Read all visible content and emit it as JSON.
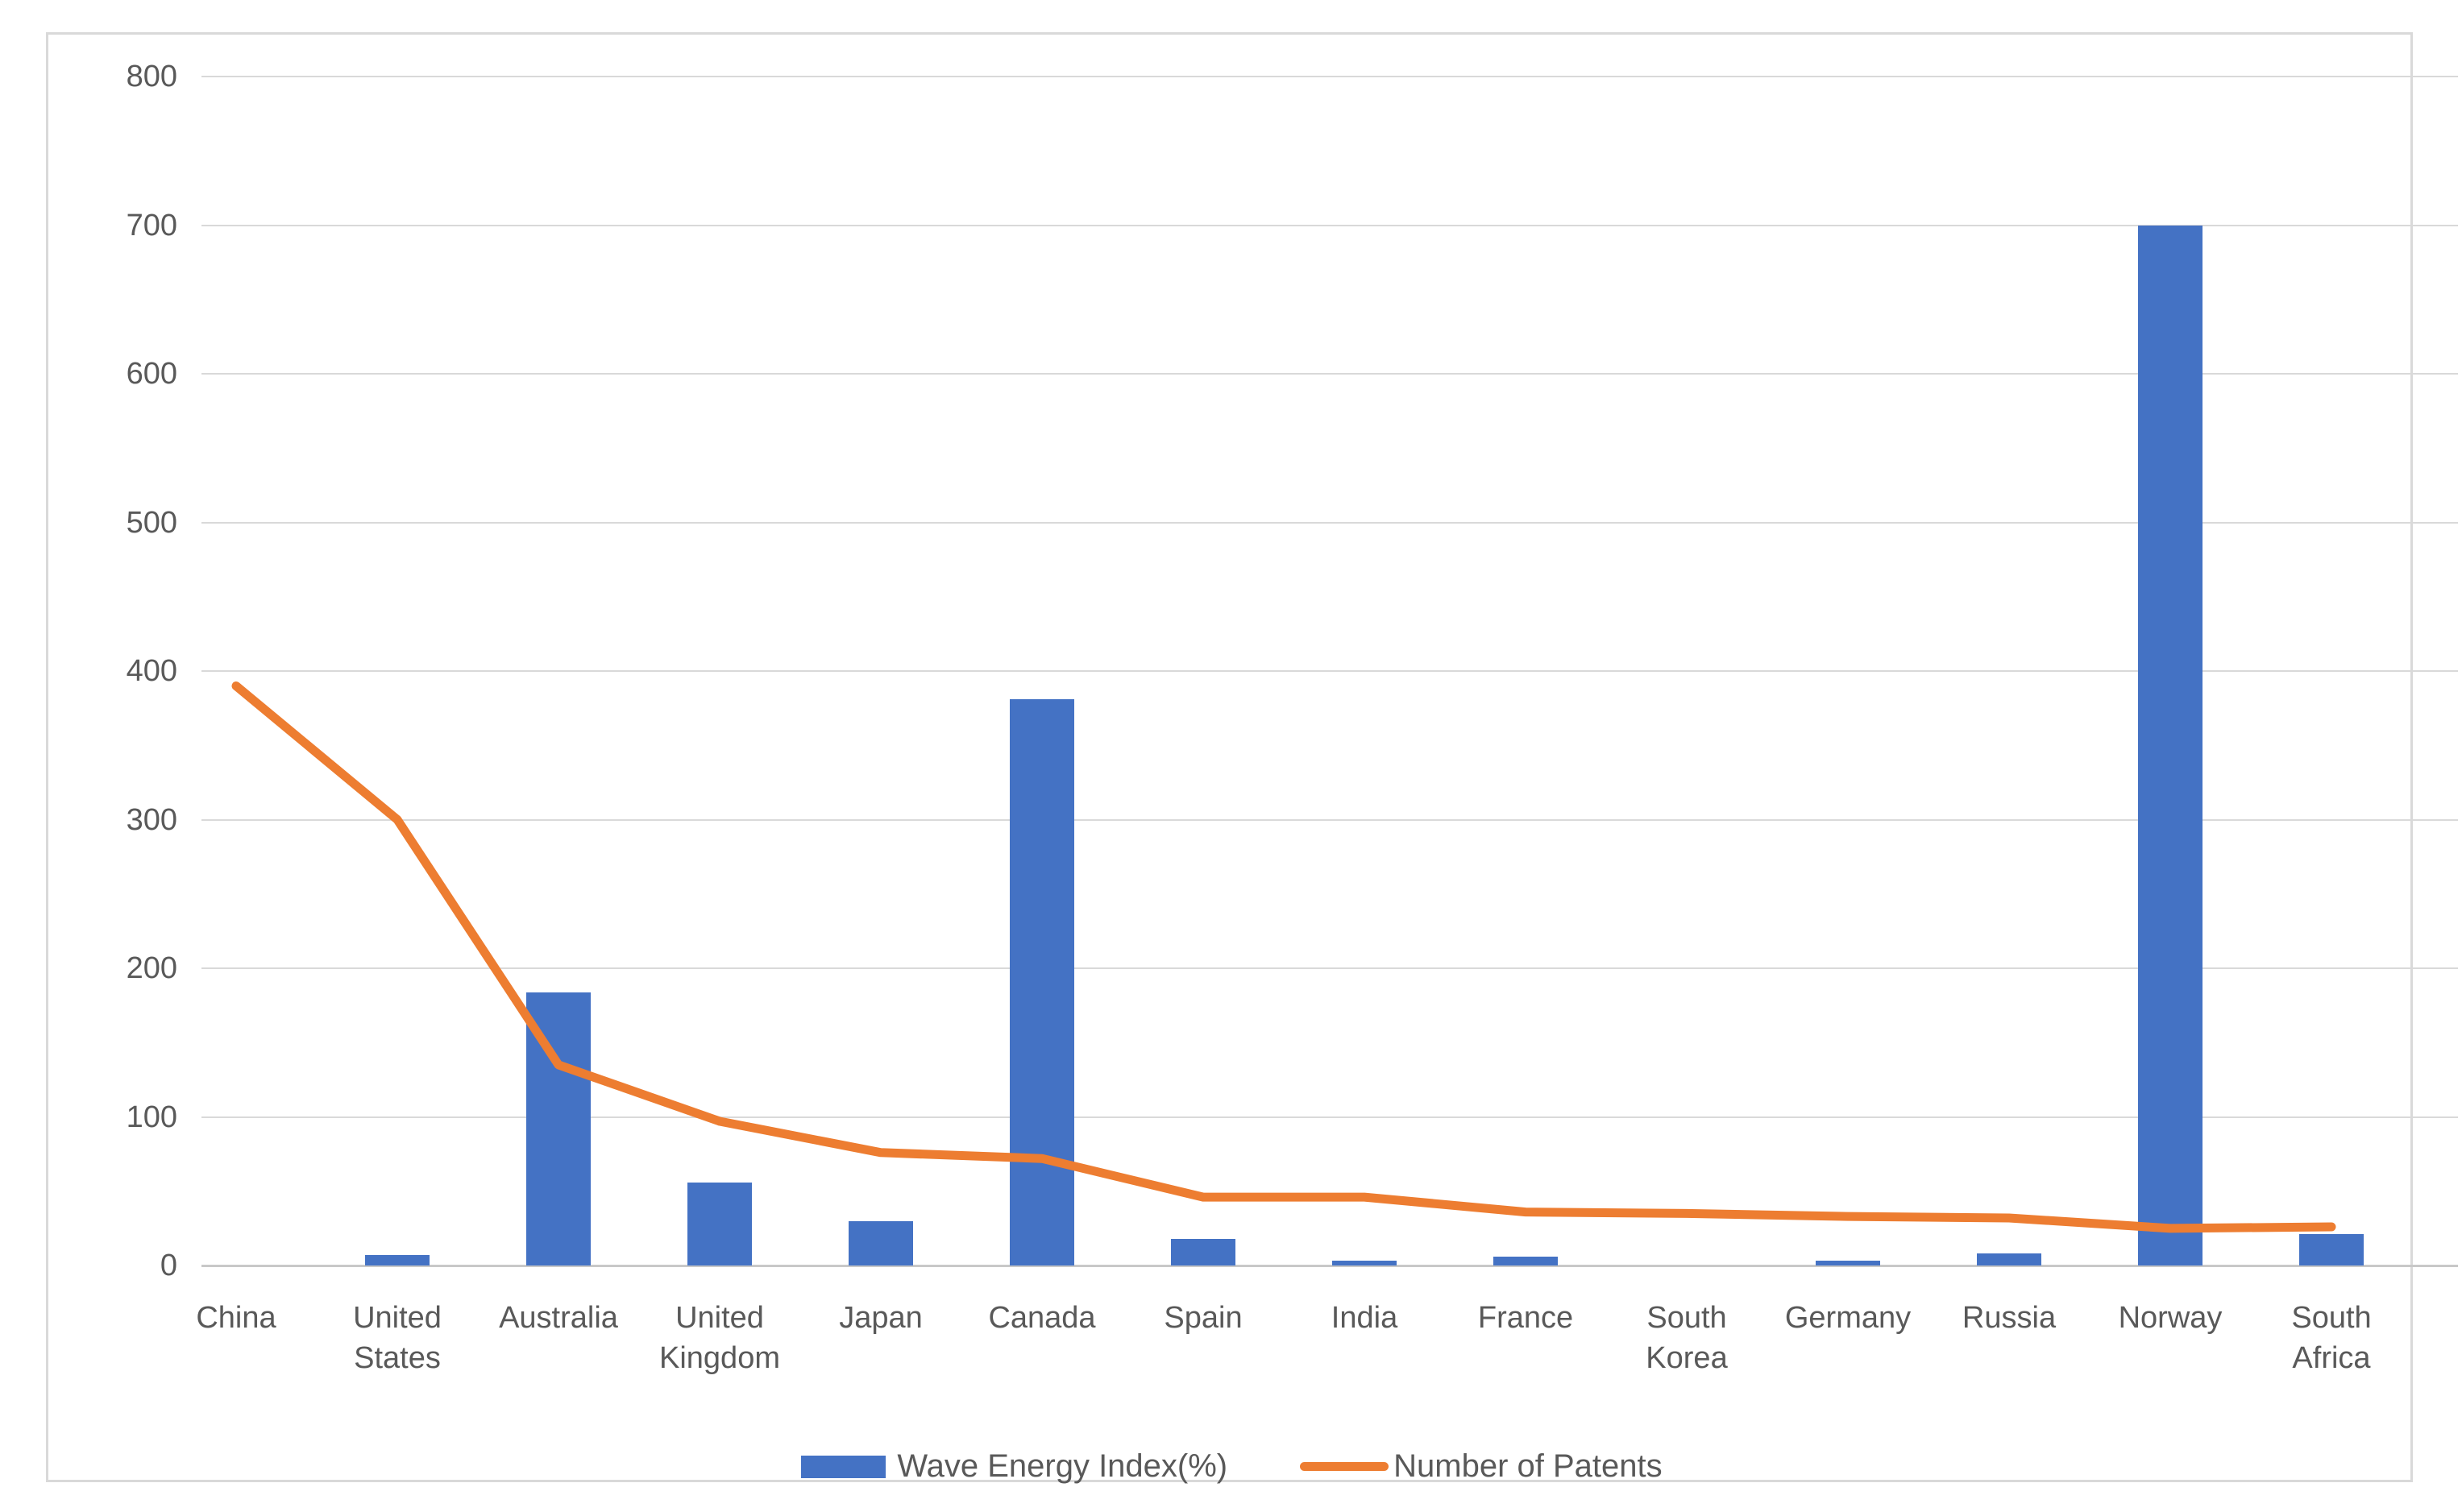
{
  "chart_data": {
    "type": "combo",
    "categories": [
      "China",
      "United States",
      "Australia",
      "United Kingdom",
      "Japan",
      "Canada",
      "Spain",
      "India",
      "France",
      "South Korea",
      "Germany",
      "Russia",
      "Norway",
      "South Africa"
    ],
    "series": [
      {
        "name": "Wave Energy Index(%)",
        "type": "bar",
        "color": "#4472C4",
        "values": [
          0,
          7,
          184,
          56,
          30,
          381,
          18,
          3,
          6,
          0,
          3,
          8,
          700,
          21
        ]
      },
      {
        "name": "Number of Patents",
        "type": "line",
        "color": "#ED7D31",
        "values": [
          390,
          300,
          135,
          97,
          76,
          72,
          46,
          46,
          36,
          35,
          33,
          32,
          25,
          26
        ]
      }
    ],
    "title": "",
    "xlabel": "",
    "ylabel": "",
    "ylim": [
      0,
      800
    ],
    "ytick_interval": 100,
    "y_tick_labels": [
      "0",
      "100",
      "200",
      "300",
      "400",
      "500",
      "600",
      "700",
      "800"
    ],
    "grid": true,
    "gridline_color": "#D9D9D9",
    "axis_text_color": "#595959",
    "frame_border_color": "#D9D9D9",
    "background_color": "#FFFFFF",
    "legend_position": "bottom",
    "legend_entries": [
      "Wave Energy Index(%)",
      "Number of Patents"
    ]
  }
}
